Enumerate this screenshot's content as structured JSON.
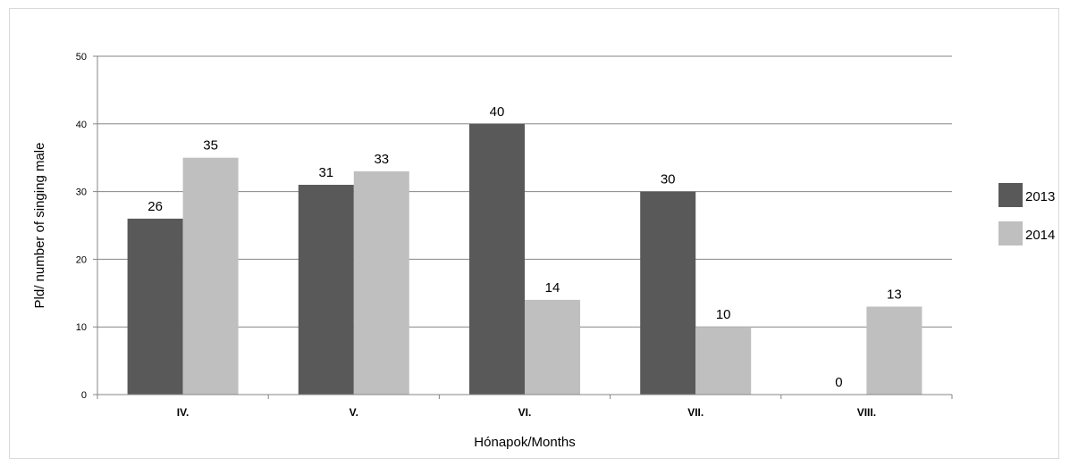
{
  "chart_data": {
    "type": "bar",
    "categories": [
      "IV.",
      "V.",
      "VI.",
      "VII.",
      "VIII."
    ],
    "series": [
      {
        "name": "2013",
        "values": [
          26,
          31,
          40,
          30,
          0
        ],
        "color": "#595959"
      },
      {
        "name": "2014",
        "values": [
          35,
          33,
          14,
          10,
          13
        ],
        "color": "#bfbfbf"
      }
    ],
    "title": "",
    "xlabel": "Hónapok/Months",
    "ylabel": "Pld/ number of singing male",
    "ylim": [
      0,
      50
    ],
    "yticks": [
      0,
      10,
      20,
      30,
      40,
      50
    ],
    "grid": true,
    "legend": "right"
  }
}
